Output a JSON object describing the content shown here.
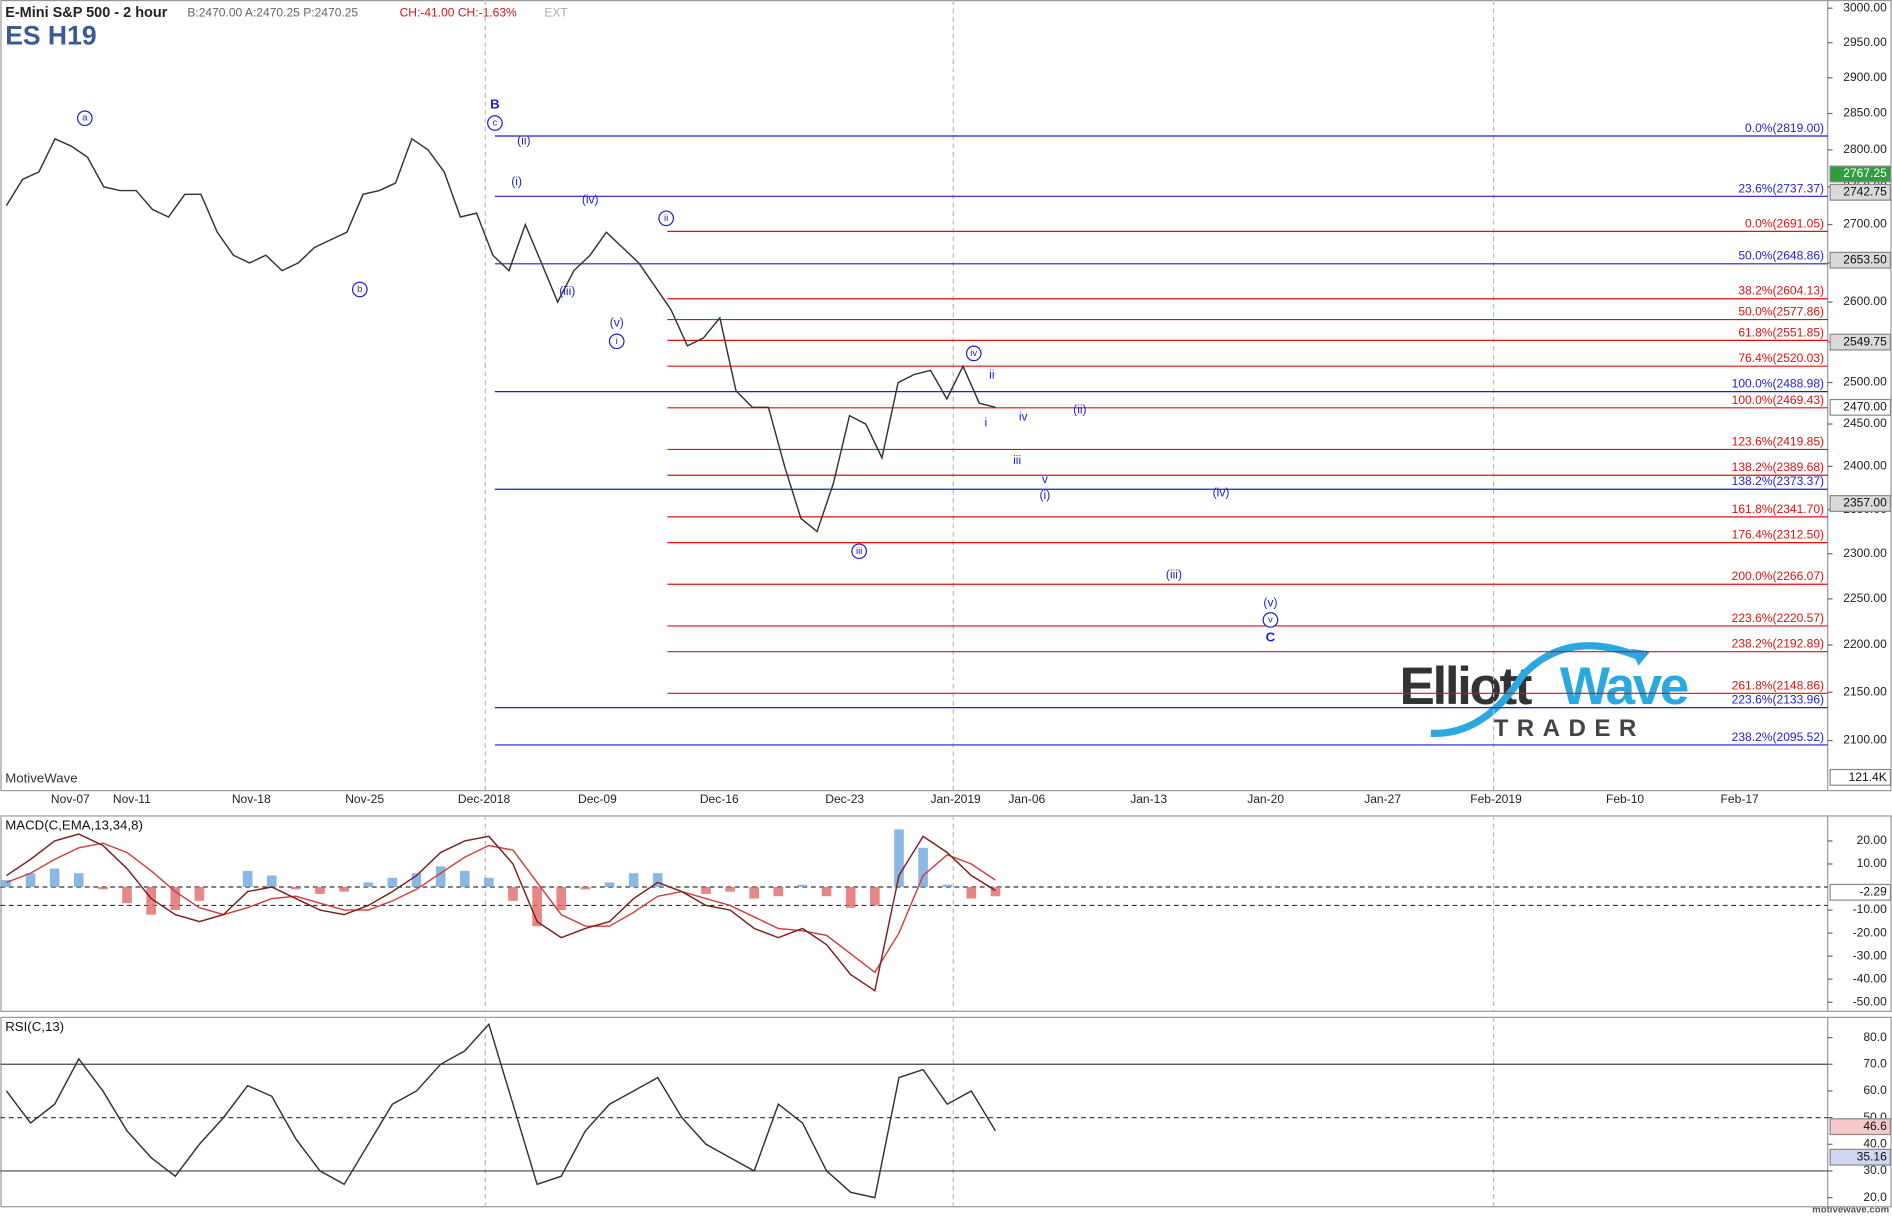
{
  "header": {
    "instrument": "E-Mini S&P 500 - 2 hour",
    "quote": "B:2470.00 A:2470.25 P:2470.25",
    "change": "CH:-41.00 CH:-1.63%",
    "session": "EXT",
    "symbol": "ES H19",
    "brand": "MotiveWave",
    "footer": "motivewave.com",
    "logo_left": "Elliott",
    "logo_right": "Wave",
    "logo_bottom": "TRADER"
  },
  "chart_data": [
    {
      "type": "line",
      "log": true,
      "color": "#333333",
      "ylim": [
        2050,
        3012
      ],
      "yticks": [
        {
          "value": 2100,
          "label": "2100.00"
        },
        {
          "value": 2150,
          "label": "2150.00"
        },
        {
          "value": 2200,
          "label": "2200.00"
        },
        {
          "value": 2250,
          "label": "2250.00"
        },
        {
          "value": 2300,
          "label": "2300.00"
        },
        {
          "value": 2350,
          "label": "2350.00"
        },
        {
          "value": 2400,
          "label": "2400.00"
        },
        {
          "value": 2450,
          "label": "2450.00"
        },
        {
          "value": 2500,
          "label": "2500.00"
        },
        {
          "value": 2550,
          "label": "2550.00"
        },
        {
          "value": 2600,
          "label": "2600.00"
        },
        {
          "value": 2650,
          "label": "2650.00"
        },
        {
          "value": 2700,
          "label": "2700.00"
        },
        {
          "value": 2750,
          "label": "2750.00"
        },
        {
          "value": 2800,
          "label": "2800.00"
        },
        {
          "value": 2850,
          "label": "2850.00"
        },
        {
          "value": 2900,
          "label": "2900.00"
        },
        {
          "value": 2950,
          "label": "2950.00"
        },
        {
          "value": 3000,
          "label": "3000.00"
        }
      ],
      "x_labels": [
        "Nov-07",
        "Nov-11",
        "Nov-18",
        "Nov-25",
        "Dec-2018",
        "Dec-09",
        "Dec-16",
        "Dec-23",
        "Jan-2019",
        "Jan-06",
        "Jan-13",
        "Jan-20",
        "Jan-27",
        "Feb-2019",
        "Feb-10",
        "Feb-17"
      ],
      "values": [
        2725,
        2760,
        2770,
        2815,
        2805,
        2790,
        2750,
        2745,
        2745,
        2720,
        2710,
        2740,
        2740,
        2690,
        2660,
        2650,
        2660,
        2640,
        2650,
        2670,
        2680,
        2690,
        2740,
        2745,
        2755,
        2815,
        2800,
        2770,
        2710,
        2715,
        2660,
        2640,
        2700,
        2650,
        2600,
        2640,
        2660,
        2690,
        2670,
        2650,
        2620,
        2590,
        2545,
        2555,
        2580,
        2490,
        2470,
        2470,
        2400,
        2340,
        2325,
        2380,
        2460,
        2450,
        2410,
        2500,
        2510,
        2515,
        2480,
        2520,
        2475,
        2470
      ],
      "fib_sets": [
        {
          "color": "#1f1fd0",
          "levels": [
            {
              "value": 2819.0,
              "label": "0.0%(2819.00)"
            },
            {
              "value": 2737.37,
              "label": "23.6%(2737.37)"
            },
            {
              "value": 2648.86,
              "label": "50.0%(2648.86)"
            },
            {
              "value": 2488.98,
              "label": "100.0%(2488.98)"
            },
            {
              "value": 2373.37,
              "label": "138.2%(2373.37)"
            },
            {
              "value": 2133.96,
              "label": "223.6%(2133.96)"
            },
            {
              "value": 2095.52,
              "label": "238.2%(2095.52)"
            }
          ]
        },
        {
          "color": "#e01010",
          "levels": [
            {
              "value": 2691.05,
              "label": "0.0%(2691.05)"
            },
            {
              "value": 2604.13,
              "label": "38.2%(2604.13)"
            },
            {
              "value": 2577.86,
              "label": "50.0%(2577.86)"
            },
            {
              "value": 2551.85,
              "label": "61.8%(2551.85)"
            },
            {
              "value": 2520.03,
              "label": "76.4%(2520.03)"
            },
            {
              "value": 2469.43,
              "label": "100.0%(2469.43)"
            },
            {
              "value": 2419.85,
              "label": "123.6%(2419.85)"
            },
            {
              "value": 2389.68,
              "label": "138.2%(2389.68)"
            },
            {
              "value": 2341.7,
              "label": "161.8%(2341.70)"
            },
            {
              "value": 2312.5,
              "label": "176.4%(2312.50)"
            },
            {
              "value": 2266.07,
              "label": "200.0%(2266.07)"
            },
            {
              "value": 2220.57,
              "label": "223.6%(2220.57)"
            },
            {
              "value": 2192.89,
              "label": "238.2%(2192.89)"
            },
            {
              "value": 2148.86,
              "label": "261.8%(2148.86)"
            }
          ]
        }
      ],
      "price_markers": [
        {
          "value": 2767.25,
          "label": "2767.25",
          "color": "#2e9e3e"
        },
        {
          "value": 2742.75,
          "label": "2742.75",
          "color": "#d9d9d9"
        },
        {
          "value": 2653.5,
          "label": "2653.50",
          "color": "#d9d9d9"
        },
        {
          "value": 2549.75,
          "label": "2549.75",
          "color": "#d9d9d9"
        },
        {
          "value": 2470.0,
          "label": "2470.00",
          "color": "#ffffff"
        },
        {
          "value": 2357.0,
          "label": "2357.00",
          "color": "#d9d9d9"
        }
      ],
      "volume_label": "121.4K",
      "wave_labels": [
        {
          "text": "a",
          "circled": true
        },
        {
          "text": "b",
          "circled": true
        },
        {
          "text": "B",
          "bold": true
        },
        {
          "text": "c",
          "circled": true
        },
        {
          "text": "(ii)"
        },
        {
          "text": "(i)"
        },
        {
          "text": "(iv)"
        },
        {
          "text": "ii",
          "circled": true
        },
        {
          "text": "(iii)"
        },
        {
          "text": "(v)"
        },
        {
          "text": "i",
          "circled": true
        },
        {
          "text": "iv",
          "circled": true
        },
        {
          "text": "ii"
        },
        {
          "text": "i"
        },
        {
          "text": "iv"
        },
        {
          "text": "(ii)"
        },
        {
          "text": "iii"
        },
        {
          "text": "v"
        },
        {
          "text": "(i)"
        },
        {
          "text": "iii",
          "circled": true
        },
        {
          "text": "(iv)"
        },
        {
          "text": "(iii)"
        },
        {
          "text": "(v)"
        },
        {
          "text": "v",
          "circled": true
        },
        {
          "text": "C",
          "bold": true
        }
      ]
    },
    {
      "type": "macd",
      "title": "MACD(C,EMA,13,34,8)",
      "ylim": [
        -53.7,
        31.1
      ],
      "yticks": [
        {
          "value": 20,
          "label": "20.00"
        },
        {
          "value": 10,
          "label": "10.00"
        },
        {
          "value": -10,
          "label": "-10.00"
        },
        {
          "value": -20,
          "label": "-20.00"
        },
        {
          "value": -30,
          "label": "-30.00"
        },
        {
          "value": -40,
          "label": "-40.00"
        },
        {
          "value": -50,
          "label": "-50.00"
        }
      ],
      "ref_lines": [
        0,
        -8
      ],
      "marker": -2.29,
      "series": [
        {
          "name": "MACD",
          "color": "#7a2020",
          "values": [
            5,
            12,
            20,
            23,
            18,
            8,
            -5,
            -12,
            -15,
            -12,
            -2,
            0,
            -5,
            -10,
            -12,
            -8,
            -2,
            5,
            15,
            20,
            22,
            10,
            -15,
            -22,
            -18,
            -15,
            -5,
            2,
            -2,
            -8,
            -10,
            -18,
            -22,
            -18,
            -25,
            -38,
            -45,
            5,
            22,
            15,
            5,
            -1.5
          ]
        },
        {
          "name": "Signal",
          "color": "#d04040",
          "values": [
            2,
            6,
            12,
            17,
            19,
            15,
            7,
            -2,
            -9,
            -12,
            -9,
            -5,
            -4,
            -7,
            -10,
            -10,
            -6,
            -1,
            6,
            13,
            18,
            16,
            2,
            -12,
            -17,
            -17,
            -11,
            -4,
            -2,
            -5,
            -8,
            -13,
            -18,
            -19,
            -21,
            -29,
            -37,
            -20,
            5,
            14,
            10,
            3
          ]
        },
        {
          "name": "Histogram",
          "color": "#6ea6dc",
          "negative_color": "#e06868",
          "values": [
            3,
            6,
            8,
            6,
            -1,
            -7,
            -12,
            -10,
            -6,
            0,
            7,
            5,
            -1,
            -3,
            -2,
            2,
            4,
            6,
            9,
            7,
            4,
            -6,
            -17,
            -10,
            -1,
            2,
            6,
            6,
            0,
            -3,
            -2,
            -5,
            -4,
            1,
            -4,
            -9,
            -8,
            25,
            17,
            1,
            -5,
            -4
          ]
        }
      ]
    },
    {
      "type": "rsi",
      "title": "RSI(C,13)",
      "ylim": [
        16.8,
        87.8
      ],
      "yticks": [
        {
          "value": 20,
          "label": "20.0"
        },
        {
          "value": 30,
          "label": "30.0"
        },
        {
          "value": 40,
          "label": "40.0"
        },
        {
          "value": 50,
          "label": "50.0"
        },
        {
          "value": 60,
          "label": "60.0"
        },
        {
          "value": 70,
          "label": "70.0"
        },
        {
          "value": 80,
          "label": "80.0"
        }
      ],
      "bands": [
        30,
        70
      ],
      "mid": 50,
      "markers": [
        46.6,
        35.16
      ],
      "color": "#333333",
      "values": [
        60,
        48,
        55,
        72,
        60,
        45,
        35,
        28,
        40,
        50,
        62,
        58,
        42,
        30,
        25,
        40,
        55,
        60,
        70,
        75,
        85,
        55,
        25,
        28,
        45,
        55,
        60,
        65,
        50,
        40,
        35,
        30,
        55,
        48,
        30,
        22,
        20,
        65,
        68,
        55,
        60,
        45
      ]
    }
  ]
}
